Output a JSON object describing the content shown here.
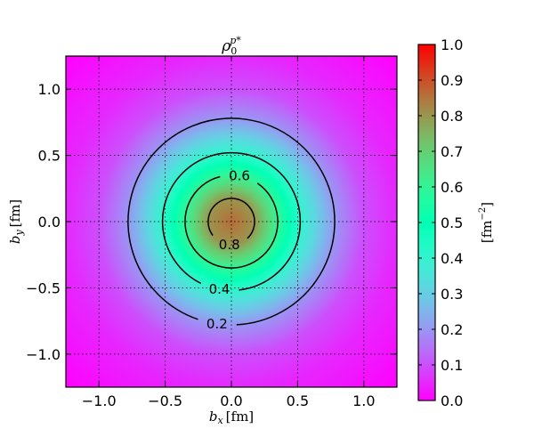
{
  "chart_data": {
    "type": "heatmap",
    "title": "ρ0p*",
    "title_parts": {
      "base": "ρ",
      "sub": "0",
      "sup": "p*"
    },
    "xlabel": "bx [fm]",
    "xlabel_parts": {
      "base": "b",
      "sub": "x",
      "unit": "[fm]"
    },
    "ylabel": "by [fm]",
    "ylabel_parts": {
      "base": "b",
      "sub": "y",
      "unit": "[fm]"
    },
    "xlim": [
      -1.25,
      1.25
    ],
    "ylim": [
      -1.25,
      1.25
    ],
    "xticks": [
      -1.0,
      -0.5,
      0.0,
      0.5,
      1.0
    ],
    "xtick_labels": [
      "−1.0",
      "−0.5",
      "0.0",
      "0.5",
      "1.0"
    ],
    "yticks": [
      -1.0,
      -0.5,
      0.0,
      0.5,
      1.0
    ],
    "ytick_labels": [
      "−1.0",
      "−0.5",
      "0.0",
      "0.5",
      "1.0"
    ],
    "grid": true,
    "colormap": "rainbow",
    "radial_density": {
      "r": [
        0.0,
        0.175,
        0.35,
        0.52,
        0.78,
        1.0,
        1.25,
        1.77
      ],
      "value": [
        0.86,
        0.8,
        0.6,
        0.4,
        0.2,
        0.1,
        0.05,
        0.0
      ]
    },
    "contours": [
      {
        "level": 0.2,
        "label": "0.2",
        "radius": 0.78
      },
      {
        "level": 0.4,
        "label": "0.4",
        "radius": 0.52
      },
      {
        "level": 0.6,
        "label": "0.6",
        "radius": 0.35
      },
      {
        "level": 0.8,
        "label": "0.8",
        "radius": 0.175
      }
    ],
    "colorbar": {
      "range": [
        0.0,
        1.0
      ],
      "ticks": [
        0.0,
        0.1,
        0.2,
        0.3,
        0.4,
        0.5,
        0.6,
        0.7,
        0.8,
        0.9,
        1.0
      ],
      "tick_labels": [
        "0.0",
        "0.1",
        "0.2",
        "0.3",
        "0.4",
        "0.5",
        "0.6",
        "0.7",
        "0.8",
        "0.9",
        "1.0"
      ],
      "label": "[fm−2]",
      "label_parts": {
        "unit": "fm",
        "exp": "−2"
      }
    }
  }
}
